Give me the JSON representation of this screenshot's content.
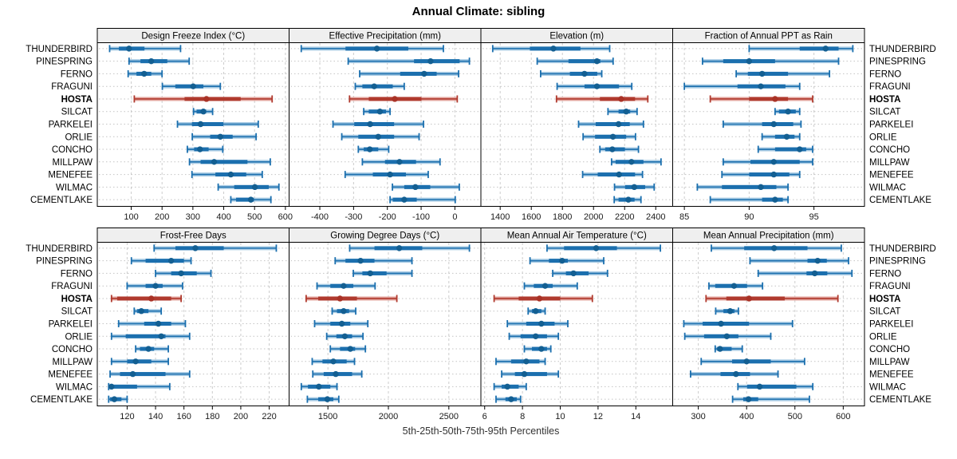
{
  "title": "Annual Climate: sibling",
  "caption": "5th-25th-50th-75th-95th Percentiles",
  "highlight_site": "HOSTA",
  "colors": {
    "blue_line": "#1b6fae",
    "blue_band": "#a8cbe4",
    "blue_dot": "#135f92",
    "red_line": "#b03a2e",
    "red_band": "#e2a39c",
    "red_dot": "#a93226",
    "header_bg": "#efefef",
    "panel_border": "#000000",
    "grid_v": "#cccccc",
    "grid_h": "#c4c4c4"
  },
  "chart_data": {
    "type": "dotplot-percentiles",
    "percentiles": [
      5,
      25,
      50,
      75,
      95
    ],
    "legend_note": "thin line = 5th-95th, thick band = 25th-75th, dot = median",
    "sites": [
      "THUNDERBIRD",
      "PINESPRING",
      "FERNO",
      "FRAGUNI",
      "HOSTA",
      "SILCAT",
      "PARKELEI",
      "ORLIE",
      "CONCHO",
      "MILLPAW",
      "MENEFEE",
      "WILMAC",
      "CEMENTLAKE"
    ],
    "panels": [
      {
        "title": "Design Freeze Index (°C)",
        "row": 1,
        "domain": [
          -10,
          612
        ],
        "ticks": [
          100,
          200,
          300,
          400,
          500,
          600
        ],
        "values": [
          [
            30,
            60,
            93,
            143,
            260
          ],
          [
            93,
            130,
            165,
            217,
            288
          ],
          [
            90,
            117,
            142,
            165,
            200
          ],
          [
            201,
            243,
            301,
            334,
            389
          ],
          [
            110,
            273,
            344,
            455,
            557
          ],
          [
            302,
            312,
            334,
            343,
            364
          ],
          [
            250,
            297,
            325,
            399,
            512
          ],
          [
            298,
            356,
            389,
            429,
            505
          ],
          [
            282,
            304,
            323,
            351,
            397
          ],
          [
            289,
            325,
            369,
            477,
            551
          ],
          [
            297,
            373,
            423,
            473,
            525
          ],
          [
            382,
            434,
            501,
            546,
            579
          ],
          [
            423,
            440,
            488,
            498,
            553
          ]
        ]
      },
      {
        "title": "Effective Precipitation (mm)",
        "row": 1,
        "domain": [
          -491,
          77
        ],
        "ticks": [
          -400,
          -300,
          -200,
          -100,
          0
        ],
        "values": [
          [
            -455,
            -324,
            -231,
            -138,
            -34
          ],
          [
            -316,
            -121,
            -72,
            14,
            43
          ],
          [
            -282,
            -162,
            -91,
            -54,
            11
          ],
          [
            -295,
            -274,
            -239,
            -184,
            -150
          ],
          [
            -312,
            -255,
            -178,
            -99,
            7
          ],
          [
            -270,
            -255,
            -222,
            -204,
            -192
          ],
          [
            -361,
            -298,
            -251,
            -180,
            -93
          ],
          [
            -335,
            -286,
            -227,
            -180,
            -106
          ],
          [
            -286,
            -270,
            -252,
            -227,
            -196
          ],
          [
            -274,
            -207,
            -164,
            -115,
            -44
          ],
          [
            -325,
            -243,
            -192,
            -145,
            -79
          ],
          [
            -185,
            -150,
            -117,
            -73,
            13
          ],
          [
            -192,
            -184,
            -150,
            -113,
            1
          ]
        ]
      },
      {
        "title": "Elevation (m)",
        "row": 1,
        "domain": [
          1276,
          2509
        ],
        "ticks": [
          1400,
          1600,
          1800,
          2000,
          2200,
          2400
        ],
        "values": [
          [
            1352,
            1591,
            1742,
            1916,
            2104
          ],
          [
            1638,
            1839,
            2022,
            2044,
            2126
          ],
          [
            1660,
            1848,
            1942,
            2024,
            2053
          ],
          [
            1766,
            1942,
            2022,
            2164,
            2246
          ],
          [
            1762,
            2041,
            2178,
            2267,
            2349
          ],
          [
            2093,
            2161,
            2210,
            2236,
            2280
          ],
          [
            1904,
            2014,
            2161,
            2233,
            2321
          ],
          [
            1933,
            2010,
            2125,
            2210,
            2270
          ],
          [
            2041,
            2075,
            2121,
            2202,
            2289
          ],
          [
            2116,
            2142,
            2244,
            2321,
            2434
          ],
          [
            1930,
            2027,
            2164,
            2267,
            2315
          ],
          [
            2135,
            2203,
            2262,
            2332,
            2390
          ],
          [
            2133,
            2161,
            2224,
            2264,
            2305
          ]
        ]
      },
      {
        "title": "Fraction of Annual PPT as Rain",
        "row": 1,
        "domain": [
          84.1,
          98.9
        ],
        "ticks": [
          85,
          90,
          95
        ],
        "values": [
          [
            90.0,
            93.9,
            95.9,
            96.9,
            98.0
          ],
          [
            86.4,
            88.0,
            90.0,
            92.0,
            96.9
          ],
          [
            89.0,
            89.9,
            91.0,
            93.0,
            96.2
          ],
          [
            85.0,
            89.1,
            90.9,
            92.8,
            93.9
          ],
          [
            87.0,
            90.0,
            92.0,
            93.0,
            94.9
          ],
          [
            92.0,
            92.3,
            93.0,
            93.6,
            93.9
          ],
          [
            88.0,
            91.0,
            91.9,
            93.4,
            94.0
          ],
          [
            91.0,
            92.0,
            92.9,
            93.5,
            93.9
          ],
          [
            90.7,
            92.0,
            93.9,
            94.4,
            94.9
          ],
          [
            88.0,
            90.1,
            91.9,
            93.9,
            94.9
          ],
          [
            87.9,
            90.0,
            91.9,
            93.1,
            93.9
          ],
          [
            86.0,
            87.9,
            90.9,
            92.1,
            93.0
          ],
          [
            87.0,
            91.0,
            92.0,
            92.6,
            93.0
          ]
        ]
      },
      {
        "title": "Frost-Free Days",
        "row": 2,
        "domain": [
          99,
          234
        ],
        "ticks": [
          120,
          140,
          160,
          180,
          200,
          220
        ],
        "values": [
          [
            139,
            154,
            168,
            188,
            225
          ],
          [
            123,
            133,
            151,
            160,
            165
          ],
          [
            140,
            151,
            158,
            169,
            179
          ],
          [
            120,
            133,
            140,
            145,
            159
          ],
          [
            109,
            113,
            137,
            151,
            158
          ],
          [
            125,
            127,
            130,
            135,
            144
          ],
          [
            114,
            132,
            142,
            151,
            161
          ],
          [
            109,
            119,
            144,
            147,
            164
          ],
          [
            126,
            129,
            135,
            139,
            149
          ],
          [
            109,
            120,
            126,
            137,
            149
          ],
          [
            108,
            115,
            124,
            147,
            164
          ],
          [
            107,
            108,
            109,
            127,
            150
          ],
          [
            107,
            108,
            111,
            116,
            120
          ]
        ]
      },
      {
        "title": "Growing Degree Days (°C)",
        "row": 2,
        "domain": [
          1179,
          2765
        ],
        "ticks": [
          1500,
          2000,
          2500
        ],
        "values": [
          [
            1680,
            1885,
            2090,
            2280,
            2670
          ],
          [
            1560,
            1645,
            1770,
            1885,
            2195
          ],
          [
            1710,
            1785,
            1850,
            1985,
            2195
          ],
          [
            1410,
            1520,
            1630,
            1710,
            1890
          ],
          [
            1320,
            1420,
            1600,
            1740,
            2070
          ],
          [
            1535,
            1575,
            1630,
            1675,
            1730
          ],
          [
            1390,
            1520,
            1615,
            1685,
            1830
          ],
          [
            1490,
            1570,
            1640,
            1700,
            1790
          ],
          [
            1520,
            1600,
            1685,
            1725,
            1810
          ],
          [
            1370,
            1455,
            1545,
            1655,
            1720
          ],
          [
            1375,
            1465,
            1565,
            1700,
            1780
          ],
          [
            1280,
            1335,
            1425,
            1520,
            1575
          ],
          [
            1330,
            1420,
            1495,
            1545,
            1590
          ]
        ]
      },
      {
        "title": "Mean Annual Air Temperature (°C)",
        "row": 2,
        "domain": [
          5.8,
          15.95
        ],
        "ticks": [
          6,
          8,
          10,
          12,
          14
        ],
        "values": [
          [
            9.3,
            10.2,
            11.9,
            13.0,
            15.3
          ],
          [
            8.4,
            9.4,
            10.1,
            10.4,
            12.3
          ],
          [
            9.6,
            10.3,
            10.7,
            11.5,
            12.5
          ],
          [
            8.1,
            8.6,
            9.2,
            9.6,
            10.9
          ],
          [
            6.5,
            7.8,
            8.9,
            10.0,
            11.7
          ],
          [
            8.3,
            8.5,
            8.7,
            9.0,
            9.2
          ],
          [
            7.2,
            8.2,
            9.0,
            9.7,
            10.4
          ],
          [
            7.3,
            7.9,
            8.7,
            9.3,
            9.9
          ],
          [
            8.1,
            8.5,
            9.0,
            9.3,
            9.5
          ],
          [
            6.6,
            7.4,
            8.2,
            8.9,
            9.2
          ],
          [
            6.9,
            7.6,
            8.1,
            9.3,
            9.9
          ],
          [
            6.5,
            6.9,
            7.2,
            7.8,
            8.2
          ],
          [
            6.6,
            7.1,
            7.4,
            7.7,
            7.9
          ]
        ]
      },
      {
        "title": "Mean Annual Precipitation (mm)",
        "row": 2,
        "domain": [
          247,
          644
        ],
        "ticks": [
          300,
          400,
          500,
          600
        ],
        "values": [
          [
            327,
            395,
            457,
            526,
            596
          ],
          [
            407,
            526,
            547,
            566,
            611
          ],
          [
            424,
            524,
            541,
            567,
            618
          ],
          [
            322,
            335,
            374,
            401,
            433
          ],
          [
            316,
            358,
            405,
            479,
            589
          ],
          [
            336,
            352,
            366,
            375,
            383
          ],
          [
            270,
            309,
            347,
            405,
            495
          ],
          [
            272,
            312,
            359,
            383,
            450
          ],
          [
            335,
            339,
            345,
            369,
            391
          ],
          [
            306,
            370,
            400,
            450,
            520
          ],
          [
            284,
            346,
            378,
            407,
            465
          ],
          [
            382,
            401,
            427,
            503,
            537
          ],
          [
            371,
            393,
            404,
            424,
            530
          ]
        ]
      }
    ]
  }
}
